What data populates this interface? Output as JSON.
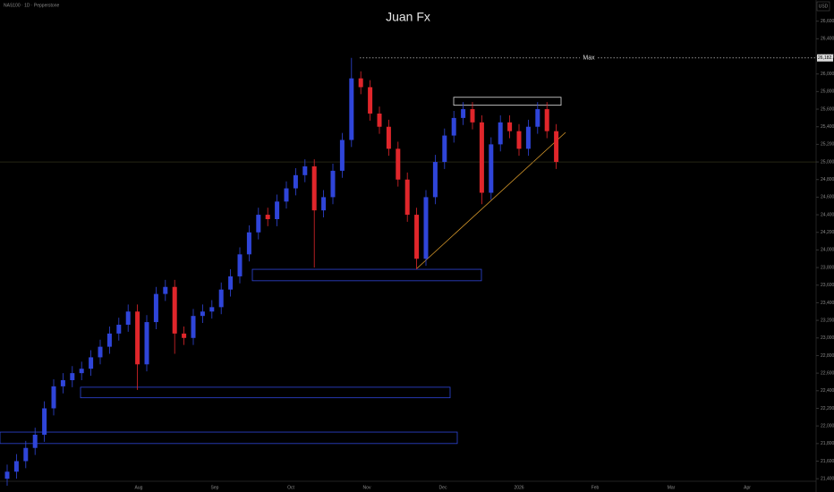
{
  "chart_data": {
    "type": "candlestick",
    "title": "Juan Fx",
    "symbol": "NAS100 · 1D · Pepperstone",
    "currency": "USD",
    "max_label": "Max",
    "max_value": {
      "value": 26182.7,
      "label": "26,182.7"
    },
    "up_color": "#2f45d9",
    "down_color": "#e0262b",
    "open": [
      21400,
      21480,
      21600,
      21750,
      21900,
      22200,
      22450,
      22520,
      22600,
      22650,
      22780,
      22900,
      23050,
      23150,
      23300,
      22700,
      23180,
      23500,
      23580,
      23050,
      23000,
      23250,
      23300,
      23350,
      23550,
      23700,
      23950,
      24200,
      24400,
      24350,
      24550,
      24700,
      24850,
      24950,
      24450,
      24600,
      24900,
      25250,
      25950,
      25850,
      25550,
      25400,
      25150,
      24800,
      24400,
      23900,
      24600,
      25000,
      25300,
      25500,
      25600,
      25450,
      24650,
      25200,
      25450,
      25350,
      25150,
      25400,
      25600,
      25350
    ],
    "high": [
      21560,
      21680,
      21830,
      21980,
      22280,
      22530,
      22600,
      22680,
      22730,
      22860,
      22980,
      23130,
      23230,
      23380,
      23380,
      23260,
      23580,
      23660,
      23660,
      23130,
      23330,
      23380,
      23430,
      23630,
      23780,
      24030,
      24280,
      24480,
      24480,
      24630,
      24780,
      24930,
      25030,
      25030,
      24680,
      24980,
      25330,
      26182.7,
      26030,
      25930,
      25630,
      25480,
      25230,
      24880,
      24480,
      24680,
      25080,
      25380,
      25580,
      25680,
      25680,
      25530,
      25280,
      25530,
      25530,
      25430,
      25480,
      25680,
      25680,
      25430
    ],
    "low": [
      21320,
      21400,
      21520,
      21670,
      21820,
      22120,
      22370,
      22440,
      22520,
      22570,
      22700,
      22820,
      22970,
      23070,
      22410,
      22620,
      23100,
      23420,
      22820,
      22920,
      22920,
      23170,
      23220,
      23270,
      23470,
      23620,
      23870,
      24120,
      24270,
      24270,
      24470,
      24620,
      24770,
      23800,
      24370,
      24520,
      24820,
      25170,
      25770,
      25470,
      25320,
      25070,
      24720,
      24320,
      23780,
      23820,
      24520,
      24920,
      25220,
      25420,
      25370,
      24520,
      24570,
      25120,
      25270,
      25070,
      25070,
      25320,
      25270,
      24920
    ],
    "close": [
      21480,
      21600,
      21750,
      21900,
      22200,
      22450,
      22520,
      22600,
      22650,
      22780,
      22900,
      23050,
      23150,
      23300,
      22700,
      23180,
      23500,
      23580,
      23050,
      23000,
      23250,
      23300,
      23350,
      23550,
      23700,
      23950,
      24200,
      24400,
      24350,
      24550,
      24700,
      24850,
      24950,
      24450,
      24600,
      24900,
      25250,
      25950,
      25850,
      25550,
      25400,
      25150,
      24800,
      24400,
      23900,
      24600,
      25000,
      25300,
      25500,
      25600,
      25450,
      24650,
      25200,
      25450,
      25350,
      25150,
      25400,
      25600,
      25350,
      25000
    ],
    "zones": [
      {
        "low": 23650,
        "high": 23780
      },
      {
        "low": 22320,
        "high": 22440
      },
      {
        "low": 21800,
        "high": 21930
      },
      {
        "low": 25645,
        "high": 25735
      }
    ],
    "x_labels": [
      "Aug",
      "Sep",
      "Oct",
      "Nov",
      "Dec",
      "2026",
      "Feb",
      "Mar",
      "Apr"
    ],
    "ylim": [
      21300,
      26800
    ],
    "yticks": [
      {
        "value": 21400,
        "label": "21,400.0"
      },
      {
        "value": 21600,
        "label": "21,600.0"
      },
      {
        "value": 21800,
        "label": "21,800.0"
      },
      {
        "value": 22000,
        "label": "22,000.0"
      },
      {
        "value": 22200,
        "label": "22,200.0"
      },
      {
        "value": 22400,
        "label": "22,400.0"
      },
      {
        "value": 22600,
        "label": "22,600.0"
      },
      {
        "value": 22800,
        "label": "22,800.0"
      },
      {
        "value": 23000,
        "label": "23,000.0"
      },
      {
        "value": 23200,
        "label": "23,200.0"
      },
      {
        "value": 23400,
        "label": "23,400.0"
      },
      {
        "value": 23600,
        "label": "23,600.0"
      },
      {
        "value": 23800,
        "label": "23,800.0"
      },
      {
        "value": 24000,
        "label": "24,000.0"
      },
      {
        "value": 24200,
        "label": "24,200.0"
      },
      {
        "value": 24400,
        "label": "24,400.0"
      },
      {
        "value": 24600,
        "label": "24,600.0"
      },
      {
        "value": 24800,
        "label": "24,800.0"
      },
      {
        "value": 25000,
        "label": "25,000.0"
      },
      {
        "value": 25200,
        "label": "25,200.0"
      },
      {
        "value": 25400,
        "label": "25,400.0"
      },
      {
        "value": 25600,
        "label": "25,600.0"
      },
      {
        "value": 25800,
        "label": "25,800.0"
      },
      {
        "value": 26000,
        "label": "26,000.0"
      },
      {
        "value": 26200,
        "label": "26,200.0"
      },
      {
        "value": 26400,
        "label": "26,400.0"
      },
      {
        "value": 26600,
        "label": "26,600.0"
      }
    ]
  }
}
